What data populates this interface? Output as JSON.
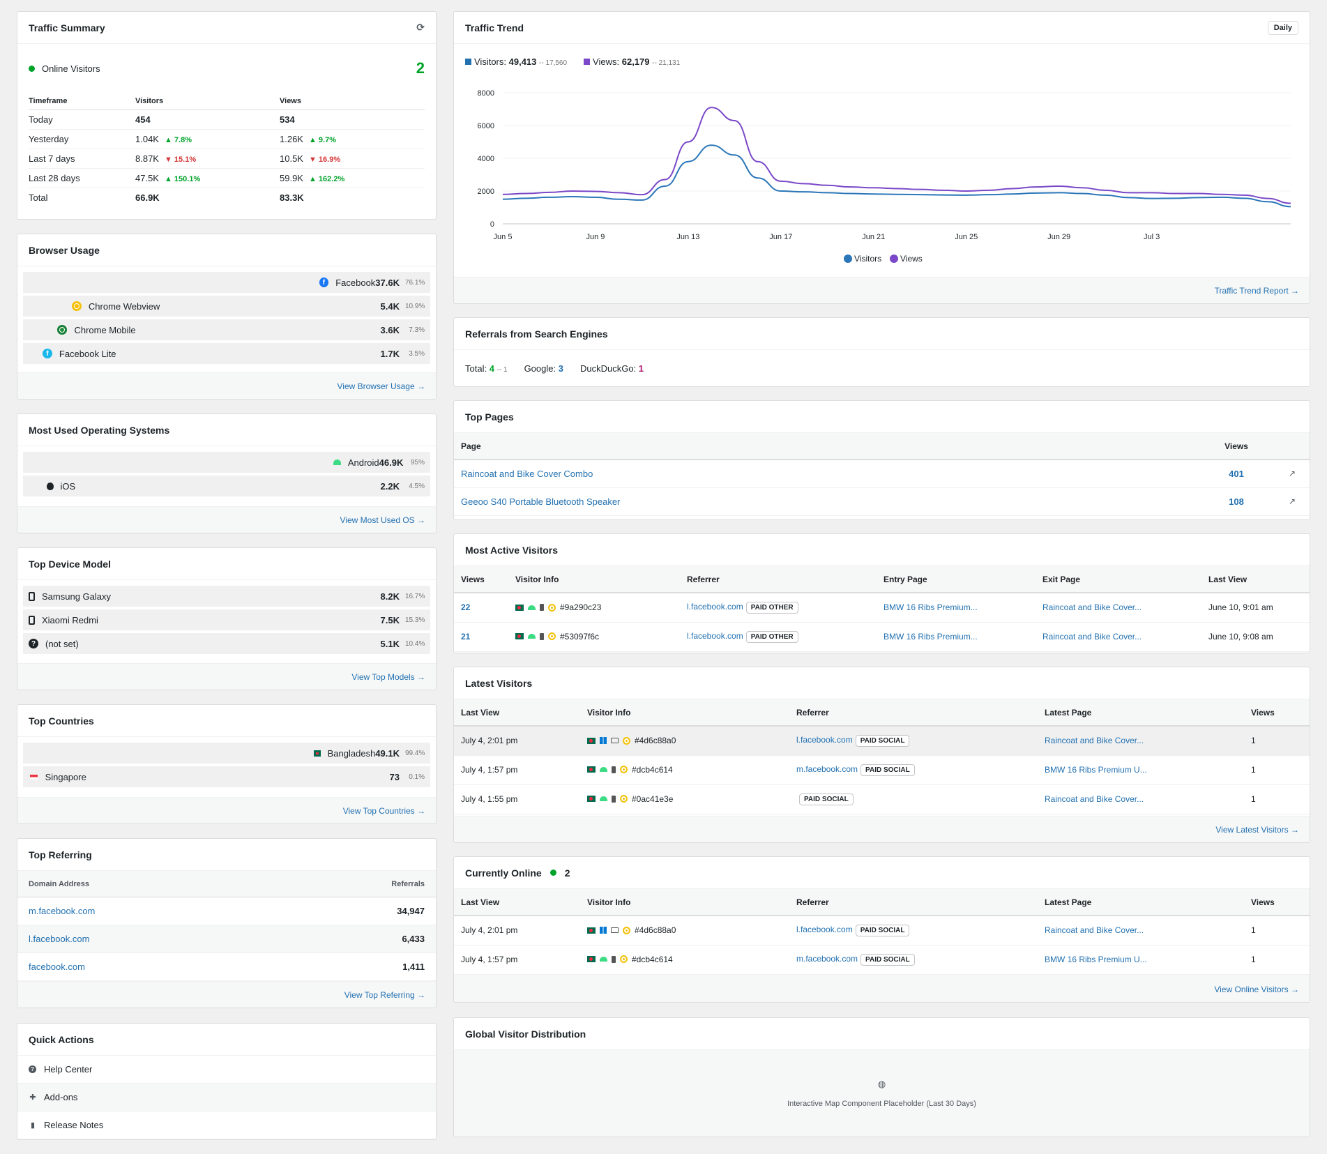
{
  "traffic_summary": {
    "title": "Traffic Summary",
    "online_label": "Online Visitors",
    "online_count": "2",
    "headers": [
      "Timeframe",
      "Visitors",
      "Views"
    ],
    "rows": [
      {
        "timeframe": "Today",
        "visitors": "454",
        "visitors_change": "",
        "views": "534",
        "views_change": "",
        "bold": true
      },
      {
        "timeframe": "Yesterday",
        "visitors": "1.04K",
        "visitors_change": "▲ 7.8%",
        "visitors_dir": "up",
        "views": "1.26K",
        "views_change": "▲ 9.7%",
        "views_dir": "up"
      },
      {
        "timeframe": "Last 7 days",
        "visitors": "8.87K",
        "visitors_change": "▼ 15.1%",
        "visitors_dir": "down",
        "views": "10.5K",
        "views_change": "▼ 16.9%",
        "views_dir": "down"
      },
      {
        "timeframe": "Last 28 days",
        "visitors": "47.5K",
        "visitors_change": "▲ 150.1%",
        "visitors_dir": "up",
        "views": "59.9K",
        "views_change": "▲ 162.2%",
        "views_dir": "up"
      },
      {
        "timeframe": "Total",
        "visitors": "66.9K",
        "visitors_change": "",
        "views": "83.3K",
        "views_change": "",
        "bold": true
      }
    ]
  },
  "browser_usage": {
    "title": "Browser Usage",
    "items": [
      {
        "label": "Facebook",
        "value": "37.6K",
        "pct": "76.1%",
        "fill": 0.761,
        "icon": "facebook-icon"
      },
      {
        "label": "Chrome Webview",
        "value": "5.4K",
        "pct": "10.9%",
        "fill": 0.109,
        "icon": "chrome-webview-icon"
      },
      {
        "label": "Chrome Mobile",
        "value": "3.6K",
        "pct": "7.3%",
        "fill": 0.073,
        "icon": "chrome-mobile-icon"
      },
      {
        "label": "Facebook Lite",
        "value": "1.7K",
        "pct": "3.5%",
        "fill": 0.035,
        "icon": "facebook-lite-icon"
      }
    ],
    "footer": "View Browser Usage →"
  },
  "os_usage": {
    "title": "Most Used Operating Systems",
    "items": [
      {
        "label": "Android",
        "value": "46.9K",
        "pct": "95%",
        "fill": 0.95,
        "icon": "android-icon"
      },
      {
        "label": "iOS",
        "value": "2.2K",
        "pct": "4.5%",
        "fill": 0.045,
        "icon": "apple-icon"
      }
    ],
    "footer": "View Most Used OS →"
  },
  "device_model": {
    "title": "Top Device Model",
    "items": [
      {
        "label": "Samsung Galaxy",
        "value": "8.2K",
        "pct": "16.7%",
        "fill": 0.0,
        "icon": "phone-icon"
      },
      {
        "label": "Xiaomi Redmi",
        "value": "7.5K",
        "pct": "15.3%",
        "fill": 0.0,
        "icon": "phone-icon"
      },
      {
        "label": "(not set)",
        "value": "5.1K",
        "pct": "10.4%",
        "fill": 0.0,
        "icon": "question-icon"
      }
    ],
    "footer": "View Top Models →"
  },
  "countries": {
    "title": "Top Countries",
    "items": [
      {
        "label": "Bangladesh",
        "value": "49.1K",
        "pct": "99.4%",
        "fill": 0.994,
        "icon": "flag-bangladesh-icon"
      },
      {
        "label": "Singapore",
        "value": "73",
        "pct": "0.1%",
        "fill": 0.001,
        "icon": "flag-singapore-icon"
      }
    ],
    "footer": "View Top Countries →"
  },
  "referring": {
    "title": "Top Referring",
    "col_domain": "Domain Address",
    "col_referrals": "Referrals",
    "rows": [
      {
        "domain": "m.facebook.com",
        "referrals": "34,947"
      },
      {
        "domain": "l.facebook.com",
        "referrals": "6,433"
      },
      {
        "domain": "facebook.com",
        "referrals": "1,411"
      }
    ],
    "footer": "View Top Referring →"
  },
  "quick_actions": {
    "title": "Quick Actions",
    "items": [
      {
        "label": "Help Center",
        "icon": "help-icon"
      },
      {
        "label": "Add-ons",
        "icon": "puzzle-icon"
      },
      {
        "label": "Release Notes",
        "icon": "document-icon"
      }
    ]
  },
  "traffic_trend": {
    "title": "Traffic Trend",
    "period_button": "Daily",
    "visitors_label": "Visitors:",
    "visitors_total": "49,413",
    "visitors_prev": "-- 17,560",
    "views_label": "Views:",
    "views_total": "62,179",
    "views_prev": "-- 21,131",
    "footer": "Traffic Trend Report →"
  },
  "chart_data": {
    "type": "line",
    "x_ticks": [
      "Jun 5",
      "Jun 9",
      "Jun 13",
      "Jun 17",
      "Jun 21",
      "Jun 25",
      "Jun 29",
      "Jul 3"
    ],
    "ylim": [
      0,
      8000
    ],
    "y_ticks": [
      0,
      2000,
      4000,
      6000,
      8000
    ],
    "grid": true,
    "legend": "bottom",
    "series": [
      {
        "name": "Visitors",
        "color": "#2a76b8",
        "values": [
          1500,
          1560,
          1620,
          1660,
          1620,
          1500,
          1450,
          2300,
          3800,
          4800,
          4200,
          2800,
          2000,
          1950,
          1900,
          1850,
          1820,
          1800,
          1780,
          1760,
          1750,
          1780,
          1820,
          1880,
          1900,
          1850,
          1750,
          1600,
          1550,
          1560,
          1600,
          1620,
          1560,
          1350,
          1050
        ]
      },
      {
        "name": "Views",
        "color": "#7a48c8",
        "values": [
          1800,
          1850,
          1920,
          2000,
          1980,
          1900,
          1780,
          2700,
          5000,
          7100,
          6300,
          3800,
          2600,
          2450,
          2350,
          2250,
          2200,
          2150,
          2100,
          2050,
          2000,
          2050,
          2150,
          2250,
          2300,
          2200,
          2050,
          1900,
          1900,
          1850,
          1850,
          1800,
          1750,
          1550,
          1250
        ]
      }
    ]
  },
  "search_engines": {
    "title": "Referrals from Search Engines",
    "total_label": "Total:",
    "total_value": "4",
    "total_prev": "-- 1",
    "google_label": "Google:",
    "google_value": "3",
    "ddg_label": "DuckDuckGo:",
    "ddg_value": "1"
  },
  "top_pages": {
    "title": "Top Pages",
    "col_page": "Page",
    "col_views": "Views",
    "rows": [
      {
        "page": "Raincoat and Bike Cover Combo",
        "views": "401"
      },
      {
        "page": "Geeoo S40 Portable Bluetooth Speaker",
        "views": "108"
      }
    ]
  },
  "active_visitors": {
    "title": "Most Active Visitors",
    "headers": [
      "Views",
      "Visitor Info",
      "Referrer",
      "Entry Page",
      "Exit Page",
      "Last View"
    ],
    "rows": [
      {
        "views": "22",
        "id": "#9a290c23",
        "referrer": "l.facebook.com",
        "badge": "PAID OTHER",
        "entry": "BMW 16 Ribs Premium...",
        "exit": "Raincoat and Bike Cover...",
        "last": "June 10, 9:01 am"
      },
      {
        "views": "21",
        "id": "#53097f6c",
        "referrer": "l.facebook.com",
        "badge": "PAID OTHER",
        "entry": "BMW 16 Ribs Premium...",
        "exit": "Raincoat and Bike Cover...",
        "last": "June 10, 9:08 am"
      }
    ]
  },
  "latest_visitors": {
    "title": "Latest Visitors",
    "headers": [
      "Last View",
      "Visitor Info",
      "Referrer",
      "Latest Page",
      "Views"
    ],
    "rows": [
      {
        "last": "July 4, 2:01 pm",
        "os": "windows",
        "device": "desktop",
        "id": "#4d6c88a0",
        "referrer": "l.facebook.com",
        "badge": "PAID SOCIAL",
        "page": "Raincoat and Bike Cover...",
        "views": "1"
      },
      {
        "last": "July 4, 1:57 pm",
        "os": "android",
        "device": "phone",
        "id": "#dcb4c614",
        "referrer": "m.facebook.com",
        "badge": "PAID SOCIAL",
        "page": "BMW 16 Ribs Premium U...",
        "views": "1"
      },
      {
        "last": "July 4, 1:55 pm",
        "os": "android",
        "device": "phone",
        "id": "#0ac41e3e",
        "referrer": "",
        "badge": "PAID SOCIAL",
        "page": "Raincoat and Bike Cover...",
        "views": "1"
      }
    ],
    "footer": "View Latest Visitors →"
  },
  "online": {
    "title": "Currently Online",
    "count": "2",
    "headers": [
      "Last View",
      "Visitor Info",
      "Referrer",
      "Latest Page",
      "Views"
    ],
    "rows": [
      {
        "last": "July 4, 2:01 pm",
        "os": "windows",
        "device": "desktop",
        "id": "#4d6c88a0",
        "referrer": "l.facebook.com",
        "badge": "PAID SOCIAL",
        "page": "Raincoat and Bike Cover...",
        "views": "1"
      },
      {
        "last": "July 4, 1:57 pm",
        "os": "android",
        "device": "phone",
        "id": "#dcb4c614",
        "referrer": "m.facebook.com",
        "badge": "PAID SOCIAL",
        "page": "BMW 16 Ribs Premium U...",
        "views": "1"
      }
    ],
    "footer": "View Online Visitors →"
  },
  "global_map": {
    "title": "Global Visitor Distribution",
    "placeholder": "Interactive Map Component Placeholder (Last 30 Days)",
    "icon": "globe-icon"
  }
}
